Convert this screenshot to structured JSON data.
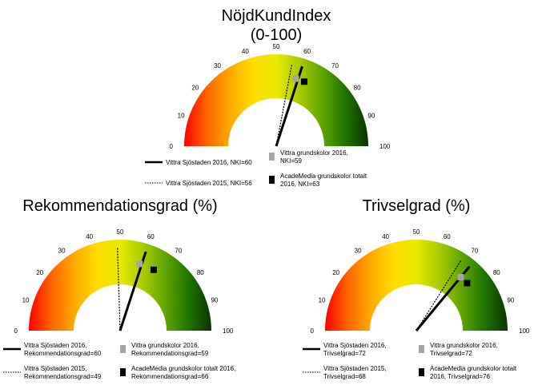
{
  "chart_data": [
    {
      "type": "gauge",
      "title": "NöjdKundIndex",
      "subtitle": "(0-100)",
      "scale": [
        0,
        100
      ],
      "ticks": [
        0,
        10,
        20,
        30,
        40,
        50,
        60,
        70,
        80,
        90,
        100
      ],
      "gradient": [
        "#ff0000",
        "#ff6600",
        "#ffaa00",
        "#ffdd00",
        "#e8e800",
        "#a8cc00",
        "#5fa400",
        "#1f7400",
        "#0a3300"
      ],
      "series": [
        {
          "kind": "needle-solid",
          "label": [
            "Vittra Sjöstaden 2016, NKI=60"
          ],
          "value": 60
        },
        {
          "kind": "needle-dotted",
          "label": [
            "Vittra Sjöstaden 2015, NKI=56"
          ],
          "value": 56
        },
        {
          "kind": "marker-gray",
          "color": "#a6a6a6",
          "label": [
            "Vittra grundskolor 2016,",
            "NKI=59"
          ],
          "value": 59
        },
        {
          "kind": "marker-black",
          "color": "#000000",
          "label": [
            "AcadeMedia grundskolor totalt",
            "2016, NKI=63"
          ],
          "value": 63
        }
      ]
    },
    {
      "type": "gauge",
      "title": "Rekommendationsgrad (%)",
      "scale": [
        0,
        100
      ],
      "ticks": [
        0,
        10,
        20,
        30,
        40,
        50,
        60,
        70,
        80,
        90,
        100
      ],
      "gradient": [
        "#ff0000",
        "#ff6600",
        "#ffaa00",
        "#ffdd00",
        "#e8e800",
        "#a8cc00",
        "#5fa400",
        "#1f7400",
        "#0a3300"
      ],
      "series": [
        {
          "kind": "needle-solid",
          "label": [
            "Vittra Sjöstaden 2016,",
            "Rekommendationsgrad=60"
          ],
          "value": 60
        },
        {
          "kind": "needle-dotted",
          "label": [
            "Vittra Sjöstaden 2015,",
            "Rekommendationsgrad=49"
          ],
          "value": 49
        },
        {
          "kind": "marker-gray",
          "color": "#a6a6a6",
          "label": [
            "Vittra grundskolor 2016,",
            "Rekommendationsgrad=59"
          ],
          "value": 59
        },
        {
          "kind": "marker-black",
          "color": "#000000",
          "label": [
            "AcadeMedia grundskolor totalt 2016,",
            "Rekommendationsgrad=66"
          ],
          "value": 66
        }
      ]
    },
    {
      "type": "gauge",
      "title": "Trivselgrad (%)",
      "scale": [
        0,
        100
      ],
      "ticks": [
        0,
        10,
        20,
        30,
        40,
        50,
        60,
        70,
        80,
        90,
        100
      ],
      "gradient": [
        "#ff0000",
        "#ff6600",
        "#ffaa00",
        "#ffdd00",
        "#e8e800",
        "#a8cc00",
        "#5fa400",
        "#1f7400",
        "#0a3300"
      ],
      "series": [
        {
          "kind": "needle-solid",
          "label": [
            "Vittra Sjöstaden 2016,",
            "Trivselgrad=72"
          ],
          "value": 72
        },
        {
          "kind": "needle-dotted",
          "label": [
            "Vittra Sjöstaden 2015,",
            "Trivselgrad=68"
          ],
          "value": 68
        },
        {
          "kind": "marker-gray",
          "color": "#a6a6a6",
          "label": [
            "Vittra grundskolor 2016,",
            "Trivselgrad=72"
          ],
          "value": 72
        },
        {
          "kind": "marker-black",
          "color": "#000000",
          "label": [
            "AcadeMedia grundskolor totalt",
            "2016, Trivselgrad=76"
          ],
          "value": 76
        }
      ]
    }
  ]
}
